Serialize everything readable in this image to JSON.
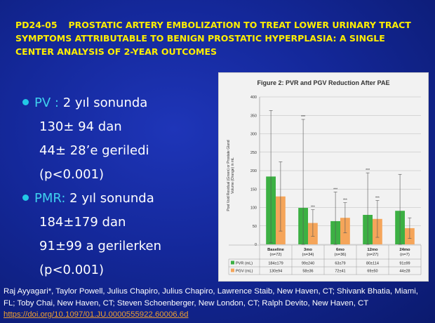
{
  "slide": {
    "code": "PD24-05",
    "title": "PROSTATIC ARTERY EMBOLIZATION TO TREAT LOWER URINARY TRACT SYMPTOMS ATTRIBUTABLE TO BENIGN PROSTATIC HYPERPLASIA: A SINGLE CENTER ANALYSIS OF 2-YEAR OUTCOMES"
  },
  "bullets": [
    {
      "label": "PV :",
      "lines": [
        "2 yıl sonunda",
        "130± 94 dan",
        "44± 28’e geriledi",
        "(p<0.001)"
      ]
    },
    {
      "label": "PMR:",
      "lines": [
        "2 yıl sonunda",
        "184±179 dan",
        "91±99 a gerilerken",
        "(p<0.001)"
      ]
    }
  ],
  "footer": {
    "text": "Raj Ayyagari*, Taylor Powell, Julius Chapiro, Julius Chapiro, Lawrence Staib, New Haven, CT; Shivank Bhatia, Miami, FL; Toby Chai, New Haven, CT; Steven Schoenberger, New London, CT; Ralph Devito, New Haven, CT",
    "link": "https://doi.org/10.1097/01.JU.0000555922.60006.6d"
  },
  "chart_data": {
    "type": "bar",
    "title": "Figure 2: PVR and PGV Reduction After PAE",
    "ylabel": "Post Void Residual (Green) or Prostate Gland Volume (Orange) in mL",
    "ylim": [
      0,
      400
    ],
    "yticks": [
      "0",
      "50",
      "100",
      "150",
      "200",
      "250",
      "300",
      "350",
      "400"
    ],
    "categories": [
      "Baseline\n(n=72)",
      "3mo\n(n=34)",
      "6mo\n(n=36)",
      "12mo\n(n=27)",
      "24mo\n(n=7)"
    ],
    "grid": true,
    "series": [
      {
        "name": "PVR (mL)",
        "color": "#3cb043",
        "values": [
          184,
          99,
          63,
          80,
          91
        ],
        "sd": [
          179,
          240,
          79,
          114,
          99
        ],
        "cells": [
          "184±179",
          "99±240",
          "63±79",
          "80±114",
          "91±99"
        ],
        "sig": [
          "",
          "***",
          "***",
          "***",
          ""
        ]
      },
      {
        "name": "PGV (mL)",
        "color": "#f5a55a",
        "values": [
          130,
          58,
          72,
          69,
          44
        ],
        "sd": [
          94,
          36,
          41,
          50,
          28
        ],
        "cells": [
          "130±94",
          "58±36",
          "72±41",
          "69±50",
          "44±28"
        ],
        "sig": [
          "",
          "***",
          "***",
          "***",
          ""
        ]
      }
    ]
  },
  "colors": {
    "title": "#ffee00",
    "bullet_dot": "#22c8e6",
    "highlight": "#3fd0ee",
    "link": "#f0a030"
  }
}
